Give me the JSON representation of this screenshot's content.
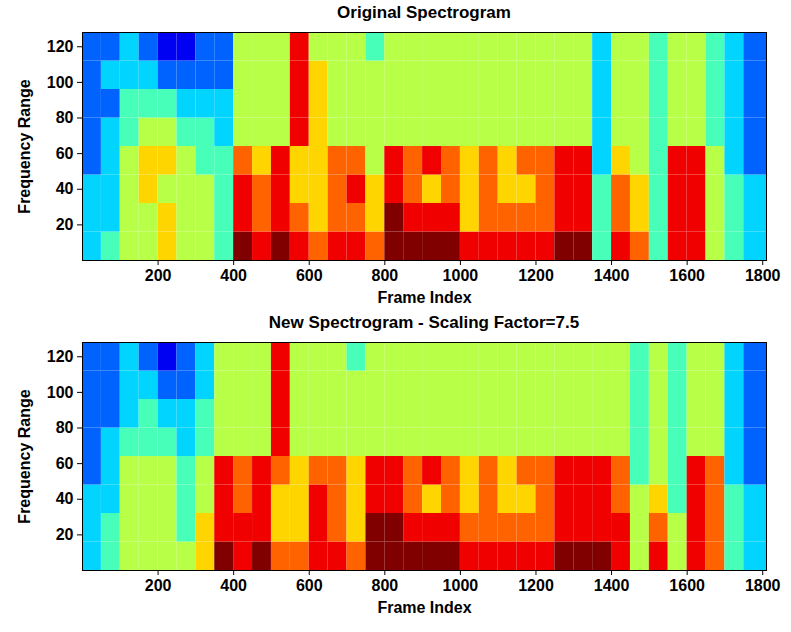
{
  "chart_data": [
    {
      "type": "heatmap",
      "title": "Original Spectrogram",
      "x_label": "Frame Index",
      "y_label": "Frequency Range",
      "xlim": [
        0,
        1810
      ],
      "ylim": [
        0,
        128
      ],
      "xticks": [
        200,
        400,
        600,
        800,
        1000,
        1200,
        1400,
        1600,
        1800
      ],
      "yticks": [
        20,
        40,
        60,
        80,
        100,
        120
      ],
      "color_range": [
        0,
        9
      ],
      "x_bins": [
        0,
        50,
        100,
        150,
        200,
        250,
        300,
        350,
        400,
        450,
        500,
        550,
        600,
        650,
        700,
        750,
        800,
        850,
        900,
        950,
        1000,
        1050,
        1100,
        1150,
        1200,
        1250,
        1300,
        1350,
        1400,
        1450,
        1500,
        1550,
        1600,
        1650,
        1700,
        1750,
        1810
      ],
      "y_bins": [
        0,
        16,
        32,
        48,
        64,
        80,
        96,
        112,
        128
      ],
      "values": [
        [
          3,
          3,
          3,
          2,
          2,
          2,
          2,
          2
        ],
        [
          4,
          3,
          3,
          3,
          3,
          2,
          3,
          2
        ],
        [
          5,
          5,
          5,
          5,
          4,
          4,
          3,
          3
        ],
        [
          5,
          5,
          6,
          6,
          5,
          4,
          3,
          2
        ],
        [
          6,
          6,
          5,
          6,
          5,
          4,
          2,
          1
        ],
        [
          5,
          5,
          5,
          5,
          4,
          3,
          2,
          1
        ],
        [
          5,
          5,
          5,
          4,
          4,
          3,
          2,
          2
        ],
        [
          4,
          4,
          4,
          4,
          3,
          3,
          2,
          2
        ],
        [
          9,
          8,
          8,
          7,
          5,
          5,
          5,
          5
        ],
        [
          8,
          7,
          7,
          6,
          5,
          5,
          5,
          5
        ],
        [
          9,
          8,
          8,
          8,
          5,
          5,
          5,
          5
        ],
        [
          8,
          7,
          6,
          6,
          8,
          8,
          8,
          8
        ],
        [
          7,
          6,
          6,
          6,
          6,
          6,
          6,
          5
        ],
        [
          8,
          7,
          7,
          7,
          5,
          5,
          5,
          5
        ],
        [
          8,
          7,
          8,
          7,
          5,
          5,
          5,
          5
        ],
        [
          7,
          6,
          6,
          5,
          5,
          5,
          5,
          4
        ],
        [
          9,
          9,
          8,
          8,
          5,
          5,
          5,
          5
        ],
        [
          9,
          8,
          7,
          7,
          5,
          5,
          5,
          5
        ],
        [
          9,
          8,
          6,
          8,
          5,
          5,
          5,
          5
        ],
        [
          9,
          8,
          7,
          7,
          5,
          5,
          5,
          5
        ],
        [
          8,
          6,
          6,
          6,
          5,
          5,
          5,
          5
        ],
        [
          8,
          7,
          7,
          7,
          5,
          5,
          5,
          5
        ],
        [
          8,
          7,
          6,
          6,
          5,
          5,
          5,
          5
        ],
        [
          8,
          7,
          6,
          7,
          5,
          5,
          5,
          5
        ],
        [
          8,
          7,
          7,
          7,
          5,
          5,
          5,
          5
        ],
        [
          9,
          8,
          8,
          8,
          5,
          5,
          5,
          5
        ],
        [
          9,
          8,
          8,
          8,
          5,
          5,
          5,
          5
        ],
        [
          4,
          4,
          4,
          3,
          3,
          3,
          3,
          3
        ],
        [
          8,
          7,
          7,
          6,
          5,
          5,
          5,
          5
        ],
        [
          7,
          6,
          6,
          5,
          5,
          5,
          5,
          5
        ],
        [
          4,
          4,
          4,
          4,
          4,
          4,
          4,
          4
        ],
        [
          8,
          8,
          8,
          8,
          5,
          5,
          5,
          5
        ],
        [
          8,
          8,
          8,
          8,
          5,
          5,
          5,
          5
        ],
        [
          5,
          5,
          5,
          5,
          4,
          4,
          4,
          4
        ],
        [
          4,
          4,
          4,
          3,
          3,
          3,
          3,
          3
        ],
        [
          3,
          3,
          3,
          2,
          2,
          2,
          2,
          2
        ]
      ]
    },
    {
      "type": "heatmap",
      "title": "New Spectrogram - Scaling Factor=7.5",
      "x_label": "Frame Index",
      "y_label": "Frequency Range",
      "xlim": [
        0,
        1810
      ],
      "ylim": [
        0,
        128
      ],
      "xticks": [
        200,
        400,
        600,
        800,
        1000,
        1200,
        1400,
        1600,
        1800
      ],
      "yticks": [
        20,
        40,
        60,
        80,
        100,
        120
      ],
      "color_range": [
        0,
        9
      ],
      "x_bins": [
        0,
        50,
        100,
        150,
        200,
        250,
        300,
        350,
        400,
        450,
        500,
        550,
        600,
        650,
        700,
        750,
        800,
        850,
        900,
        950,
        1000,
        1050,
        1100,
        1150,
        1200,
        1250,
        1300,
        1350,
        1400,
        1450,
        1500,
        1550,
        1600,
        1650,
        1700,
        1750,
        1810
      ],
      "y_bins": [
        0,
        16,
        32,
        48,
        64,
        80,
        96,
        112,
        128
      ],
      "values": [
        [
          3,
          3,
          3,
          2,
          2,
          2,
          2,
          2
        ],
        [
          4,
          4,
          3,
          3,
          3,
          2,
          2,
          2
        ],
        [
          5,
          5,
          5,
          5,
          4,
          3,
          3,
          3
        ],
        [
          5,
          5,
          5,
          5,
          4,
          4,
          3,
          2
        ],
        [
          5,
          5,
          5,
          5,
          4,
          3,
          2,
          1
        ],
        [
          5,
          4,
          4,
          4,
          3,
          3,
          2,
          2
        ],
        [
          6,
          6,
          5,
          5,
          4,
          4,
          3,
          3
        ],
        [
          9,
          8,
          8,
          8,
          5,
          5,
          5,
          5
        ],
        [
          8,
          8,
          7,
          7,
          5,
          5,
          5,
          5
        ],
        [
          9,
          8,
          8,
          8,
          5,
          5,
          5,
          5
        ],
        [
          7,
          6,
          6,
          7,
          8,
          8,
          8,
          8
        ],
        [
          7,
          6,
          6,
          6,
          5,
          5,
          5,
          5
        ],
        [
          8,
          8,
          8,
          7,
          5,
          5,
          5,
          5
        ],
        [
          8,
          7,
          7,
          7,
          5,
          5,
          5,
          5
        ],
        [
          7,
          6,
          6,
          6,
          5,
          5,
          5,
          4
        ],
        [
          9,
          9,
          8,
          8,
          5,
          5,
          5,
          5
        ],
        [
          9,
          9,
          8,
          8,
          5,
          5,
          5,
          5
        ],
        [
          9,
          8,
          7,
          7,
          5,
          5,
          5,
          5
        ],
        [
          9,
          8,
          6,
          8,
          5,
          5,
          5,
          5
        ],
        [
          9,
          8,
          7,
          7,
          5,
          5,
          5,
          5
        ],
        [
          8,
          7,
          6,
          6,
          5,
          5,
          5,
          5
        ],
        [
          8,
          7,
          7,
          7,
          5,
          5,
          5,
          5
        ],
        [
          8,
          7,
          6,
          6,
          5,
          5,
          5,
          5
        ],
        [
          8,
          7,
          6,
          7,
          5,
          5,
          5,
          5
        ],
        [
          8,
          7,
          7,
          7,
          5,
          5,
          5,
          5
        ],
        [
          9,
          8,
          8,
          8,
          5,
          5,
          5,
          5
        ],
        [
          9,
          8,
          8,
          8,
          5,
          5,
          5,
          5
        ],
        [
          9,
          8,
          8,
          8,
          5,
          5,
          5,
          5
        ],
        [
          8,
          8,
          7,
          7,
          5,
          5,
          5,
          5
        ],
        [
          5,
          5,
          5,
          4,
          4,
          4,
          4,
          4
        ],
        [
          8,
          7,
          6,
          5,
          5,
          5,
          5,
          5
        ],
        [
          5,
          5,
          4,
          4,
          4,
          4,
          4,
          4
        ],
        [
          8,
          8,
          8,
          8,
          5,
          5,
          5,
          5
        ],
        [
          7,
          7,
          7,
          7,
          5,
          5,
          5,
          5
        ],
        [
          4,
          4,
          4,
          3,
          3,
          3,
          3,
          3
        ],
        [
          3,
          3,
          3,
          2,
          2,
          2,
          2,
          2
        ]
      ]
    }
  ]
}
